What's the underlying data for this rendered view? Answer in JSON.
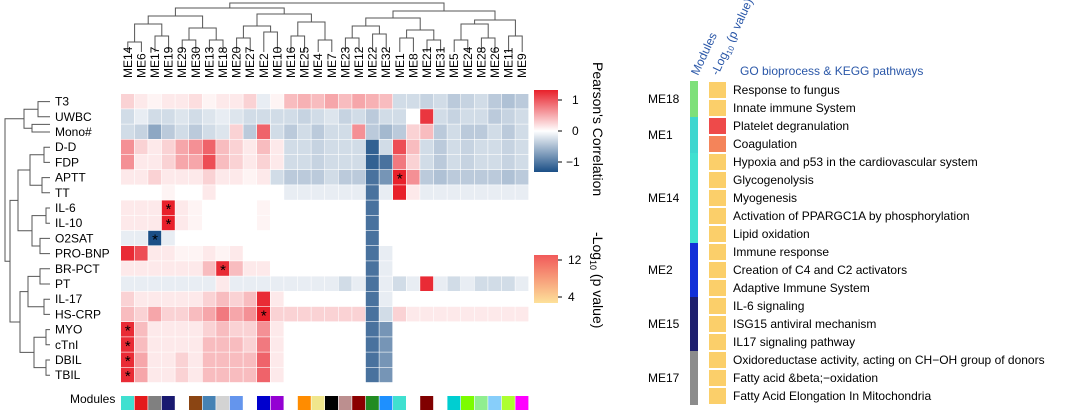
{
  "heatmap": {
    "columns": [
      "ME14",
      "ME6",
      "ME17",
      "ME19",
      "ME29",
      "ME30",
      "ME13",
      "ME18",
      "ME20",
      "ME27",
      "ME2",
      "ME10",
      "ME16",
      "ME25",
      "ME4",
      "ME7",
      "ME23",
      "ME12",
      "ME22",
      "ME32",
      "ME1",
      "ME8",
      "ME21",
      "ME31",
      "ME5",
      "ME24",
      "ME28",
      "ME26",
      "ME11",
      "ME9"
    ],
    "rows": [
      "T3",
      "UWBC",
      "Mono#",
      "D-D",
      "FDP",
      "APTT",
      "TT",
      "IL-6",
      "IL-10",
      "O2SAT",
      "PRO-BNP",
      "BR-PCT",
      "PT",
      "IL-17",
      "HS-CRP",
      "MYO",
      "cTnI",
      "DBIL",
      "TBIL"
    ],
    "row_data": [
      [
        0.2,
        0.1,
        0.05,
        0.1,
        0.1,
        0.15,
        0.05,
        0.1,
        0.1,
        0.2,
        -0.1,
        0.05,
        0.3,
        0.35,
        0.3,
        0.4,
        0.3,
        0.4,
        0.35,
        0.3,
        -0.2,
        -0.2,
        -0.25,
        -0.2,
        -0.3,
        -0.25,
        -0.2,
        -0.3,
        -0.35,
        -0.3
      ],
      [
        -0.2,
        -0.1,
        -0.2,
        -0.2,
        -0.15,
        -0.2,
        -0.15,
        -0.1,
        -0.15,
        -0.2,
        -0.2,
        -0.2,
        -0.2,
        -0.25,
        -0.2,
        -0.15,
        -0.25,
        -0.2,
        -0.3,
        -0.2,
        -0.2,
        0.0,
        0.9,
        -0.2,
        -0.25,
        -0.2,
        -0.2,
        -0.3,
        -0.25,
        -0.2
      ],
      [
        -0.2,
        -0.25,
        -0.5,
        -0.3,
        -0.2,
        -0.3,
        -0.2,
        -0.15,
        0.2,
        -0.3,
        0.7,
        -0.2,
        -0.3,
        -0.2,
        -0.3,
        -0.2,
        -0.2,
        0.5,
        -0.3,
        -0.4,
        -0.3,
        0.2,
        0.3,
        -0.3,
        -0.2,
        -0.3,
        -0.3,
        -0.2,
        -0.3,
        -0.2
      ],
      [
        0.5,
        0.2,
        0.1,
        0.2,
        0.4,
        0.5,
        0.7,
        0.3,
        0.2,
        0.1,
        0.3,
        0.1,
        -0.2,
        -0.2,
        -0.25,
        -0.2,
        -0.2,
        -0.2,
        -0.9,
        -0.2,
        0.8,
        0.3,
        -0.2,
        -0.3,
        -0.2,
        -0.25,
        -0.2,
        -0.2,
        -0.25,
        -0.2
      ],
      [
        0.5,
        0.1,
        0.1,
        0.2,
        0.4,
        0.4,
        0.8,
        0.3,
        0.2,
        0.1,
        0.2,
        0.1,
        -0.2,
        -0.2,
        -0.25,
        -0.2,
        -0.2,
        -0.2,
        -0.9,
        -0.8,
        0.6,
        0.2,
        -0.2,
        -0.3,
        -0.2,
        -0.25,
        -0.2,
        -0.2,
        -0.25,
        -0.2
      ],
      [
        0.1,
        0.1,
        0.2,
        0.1,
        0.1,
        0.1,
        0.2,
        0.1,
        0.1,
        0.05,
        0.1,
        -0.2,
        -0.3,
        -0.3,
        -0.3,
        -0.2,
        -0.3,
        -0.3,
        -0.8,
        -0.6,
        1.0,
        0.5,
        -0.3,
        -0.35,
        -0.3,
        -0.3,
        -0.3,
        -0.3,
        -0.35,
        -0.3
      ],
      [
        0.0,
        0.0,
        0.0,
        0.05,
        0.0,
        0.0,
        0.1,
        0.0,
        0.0,
        0.0,
        0.0,
        0.0,
        -0.1,
        -0.1,
        -0.1,
        -0.1,
        -0.1,
        -0.1,
        -0.8,
        -0.1,
        1.0,
        0.1,
        -0.1,
        -0.1,
        -0.1,
        -0.1,
        -0.1,
        -0.1,
        -0.1,
        -0.1
      ],
      [
        0.1,
        0.1,
        0.1,
        1.0,
        0.1,
        0.05,
        0.0,
        0.0,
        0.0,
        0.0,
        0.05,
        0.0,
        0.0,
        0.0,
        0.0,
        0.0,
        0.0,
        0.0,
        -0.8,
        0.0,
        0.0,
        0.0,
        0.0,
        0.0,
        0.0,
        0.0,
        0.0,
        0.0,
        0.0,
        0.0
      ],
      [
        0.1,
        0.1,
        0.1,
        1.0,
        0.1,
        0.05,
        0.0,
        0.0,
        0.0,
        0.0,
        0.05,
        0.0,
        0.0,
        0.0,
        0.0,
        0.0,
        0.0,
        0.0,
        -0.8,
        0.0,
        0.0,
        0.0,
        0.0,
        0.0,
        0.0,
        0.0,
        0.0,
        0.0,
        0.0,
        0.0
      ],
      [
        -0.1,
        -0.1,
        -1.0,
        -0.1,
        0.0,
        0.0,
        0.0,
        0.0,
        0.0,
        0.0,
        0.0,
        0.0,
        0.0,
        0.0,
        0.0,
        0.0,
        0.0,
        0.0,
        -0.8,
        0.0,
        0.0,
        0.0,
        0.0,
        0.0,
        0.0,
        0.0,
        0.0,
        0.0,
        0.0,
        0.0
      ],
      [
        0.95,
        0.8,
        0.1,
        0.1,
        0.05,
        0.05,
        0.1,
        0.05,
        0.1,
        0.0,
        0.0,
        0.0,
        0.0,
        0.0,
        0.0,
        0.0,
        0.0,
        0.0,
        -0.8,
        -0.1,
        0.0,
        0.0,
        0.0,
        0.0,
        0.0,
        0.0,
        0.0,
        0.0,
        0.0,
        0.0
      ],
      [
        0.1,
        0.1,
        0.1,
        0.1,
        0.1,
        0.1,
        0.3,
        0.95,
        0.3,
        0.1,
        0.1,
        0.0,
        0.0,
        0.0,
        0.0,
        0.0,
        0.0,
        0.0,
        -0.8,
        -0.1,
        0.0,
        0.0,
        0.0,
        0.0,
        0.0,
        0.0,
        0.0,
        0.0,
        0.0,
        0.0
      ],
      [
        -0.1,
        -0.1,
        -0.1,
        -0.1,
        -0.1,
        -0.1,
        -0.1,
        0.1,
        -0.1,
        -0.1,
        -0.1,
        -0.1,
        -0.1,
        -0.1,
        -0.1,
        -0.1,
        -0.2,
        -0.1,
        -0.8,
        -0.1,
        -0.2,
        -0.1,
        0.95,
        -0.1,
        -0.2,
        -0.1,
        -0.2,
        -0.2,
        -0.2,
        -0.1
      ],
      [
        0.2,
        0.1,
        0.1,
        0.1,
        0.1,
        0.1,
        0.2,
        0.3,
        0.2,
        0.3,
        0.95,
        0.1,
        0.0,
        0.0,
        0.0,
        0.0,
        0.0,
        0.0,
        -0.8,
        -0.1,
        0.0,
        0.0,
        0.0,
        0.0,
        0.0,
        0.0,
        0.0,
        0.0,
        0.0,
        0.0
      ],
      [
        0.3,
        0.2,
        0.4,
        0.2,
        0.2,
        0.3,
        0.4,
        0.6,
        0.4,
        0.5,
        1.0,
        0.2,
        0.2,
        0.2,
        0.2,
        0.2,
        0.2,
        0.2,
        -0.8,
        -0.2,
        0.2,
        0.1,
        0.1,
        0.1,
        0.1,
        0.1,
        0.1,
        0.1,
        0.1,
        0.1
      ],
      [
        0.95,
        0.3,
        0.1,
        0.1,
        0.1,
        0.1,
        0.2,
        0.3,
        0.2,
        0.2,
        0.5,
        0.1,
        0.0,
        0.0,
        0.0,
        0.0,
        0.0,
        0.0,
        -0.8,
        -0.6,
        0.0,
        0.0,
        0.0,
        0.0,
        0.0,
        0.0,
        0.0,
        0.0,
        0.0,
        0.0
      ],
      [
        0.95,
        0.3,
        0.1,
        0.1,
        0.1,
        0.1,
        0.3,
        0.3,
        0.3,
        0.2,
        0.6,
        0.1,
        0.0,
        0.0,
        0.0,
        0.0,
        0.0,
        0.0,
        -0.8,
        -0.6,
        0.0,
        0.0,
        0.0,
        0.0,
        0.0,
        0.0,
        0.0,
        0.0,
        0.0,
        0.0
      ],
      [
        0.95,
        0.4,
        0.1,
        0.1,
        0.2,
        0.1,
        0.3,
        0.3,
        0.3,
        0.3,
        0.7,
        0.1,
        0.0,
        0.0,
        0.0,
        0.0,
        0.0,
        0.0,
        -0.8,
        -0.6,
        0.0,
        0.0,
        0.0,
        0.0,
        0.0,
        0.0,
        0.0,
        0.0,
        0.0,
        0.0
      ],
      [
        0.95,
        0.4,
        0.1,
        0.1,
        0.2,
        0.1,
        0.3,
        0.3,
        0.3,
        0.3,
        0.7,
        0.1,
        0.0,
        0.0,
        0.0,
        0.0,
        0.0,
        0.0,
        -0.8,
        -0.6,
        0.0,
        0.0,
        0.0,
        0.0,
        0.0,
        0.0,
        0.0,
        0.0,
        0.0,
        0.0
      ]
    ],
    "stars": [
      [
        5,
        20
      ],
      [
        7,
        3
      ],
      [
        8,
        3
      ],
      [
        9,
        2
      ],
      [
        11,
        7
      ],
      [
        14,
        10
      ],
      [
        15,
        0
      ],
      [
        16,
        0
      ],
      [
        17,
        0
      ],
      [
        18,
        0
      ]
    ],
    "module_colors": [
      "#40e0d0",
      "#e41a1c",
      "#808080",
      "#191970",
      "#ffffff",
      "#8b4513",
      "#4682b4",
      "#d3d3d3",
      "#6495ed",
      "#ffffff",
      "#0000cd",
      "#9400d3",
      "#ffffff",
      "#ff8c00",
      "#f0e68c",
      "#000000",
      "#bc8f8f",
      "#8b0000",
      "#228b22",
      "#1e90ff",
      "#40e0d0",
      "#ffffff",
      "#800000",
      "#ffffff",
      "#00ced1",
      "#7cfc00",
      "#90ee90",
      "#87cefa",
      "#adff2f",
      "#ff00ff"
    ],
    "modules_label": "Modules"
  },
  "legend_correlation": {
    "title": "Pearson's Correlation",
    "ticks": [
      "1",
      "0",
      "−1"
    ]
  },
  "legend_pvalue": {
    "title_prefix": "-Log",
    "title_sub": "10",
    "title_suffix": " (p value)",
    "ticks": [
      "12",
      "4"
    ]
  },
  "enrichment": {
    "header_modules": "Modules",
    "header_pvalue_prefix": "-Log",
    "header_pvalue_sub": "10",
    "header_pvalue_suffix": " (p value)",
    "header_terms": "GO bioprocess & KEGG pathways",
    "groups": [
      {
        "module": "ME18",
        "color": "#7ee07a",
        "terms": [
          {
            "name": "Response to fungus",
            "color": "#fbcf6a"
          },
          {
            "name": "Innate immune System",
            "color": "#fbcf6a"
          }
        ]
      },
      {
        "module": "ME1",
        "color": "#3fd6cf",
        "terms": [
          {
            "name": "Platelet degranulation",
            "color": "#ee4a4a"
          },
          {
            "name": "Coagulation",
            "color": "#f4845a"
          }
        ]
      },
      {
        "module": "ME14",
        "color": "#40e0d0",
        "terms": [
          {
            "name": "Hypoxia and p53 in the cardiovascular system",
            "color": "#fbcf6a"
          },
          {
            "name": "Glycogenolysis",
            "color": "#fbcf6a"
          },
          {
            "name": "Myogenesis",
            "color": "#fbcf6a"
          },
          {
            "name": "Activation of PPARGC1A by phosphorylation",
            "color": "#fbcf6a"
          },
          {
            "name": "Lipid oxidation",
            "color": "#fbcf6a"
          }
        ]
      },
      {
        "module": "ME2",
        "color": "#1230d8",
        "terms": [
          {
            "name": "Immune response",
            "color": "#fbcf6a"
          },
          {
            "name": "Creation of C4 and C2 activators",
            "color": "#fbcf6a"
          },
          {
            "name": "Adaptive Immune System",
            "color": "#fbcf6a"
          }
        ]
      },
      {
        "module": "ME15",
        "color": "#1e1f6e",
        "terms": [
          {
            "name": "IL-6 signaling",
            "color": "#fbcf6a"
          },
          {
            "name": "ISG15 antiviral mechanism",
            "color": "#fbcf6a"
          },
          {
            "name": "IL17 signaling pathway",
            "color": "#fbcf6a"
          }
        ]
      },
      {
        "module": "ME17",
        "color": "#8c8c8c",
        "terms": [
          {
            "name": "Oxidoreductase activity, acting on CH−OH group of donors",
            "color": "#fbcf6a"
          },
          {
            "name": "Fatty acid &beta;−oxidation",
            "color": "#fbcf6a"
          },
          {
            "name": "Fatty Acid Elongation In Mitochondria",
            "color": "#fbcf6a"
          }
        ]
      }
    ]
  }
}
